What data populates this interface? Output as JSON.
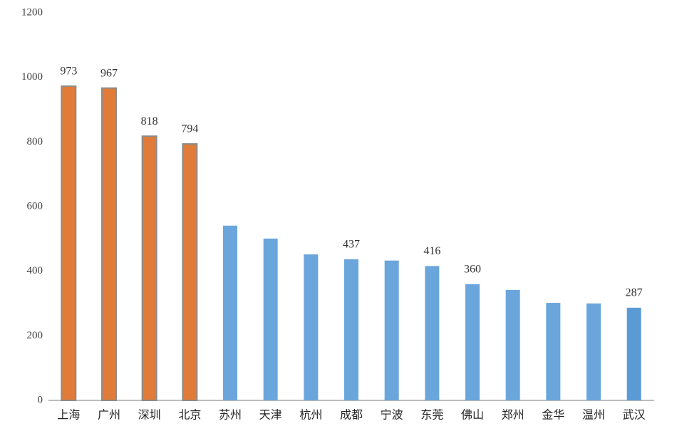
{
  "chart_data": {
    "type": "bar",
    "categories": [
      "上海",
      "广州",
      "深圳",
      "北京",
      "苏州",
      "天津",
      "杭州",
      "成都",
      "宁波",
      "东莞",
      "佛山",
      "郑州",
      "金华",
      "温州",
      "武汉"
    ],
    "values": [
      973,
      967,
      818,
      794,
      541,
      501,
      452,
      437,
      433,
      416,
      360,
      342,
      302,
      300,
      287
    ],
    "value_labels": [
      "973",
      "967",
      "818",
      "794",
      null,
      null,
      null,
      "437",
      null,
      "416",
      "360",
      null,
      null,
      null,
      "287"
    ],
    "colors": [
      "#e07b39",
      "#e07b39",
      "#e07b39",
      "#e07b39",
      "#6aa6dc",
      "#6aa6dc",
      "#6aa6dc",
      "#6aa6dc",
      "#6aa6dc",
      "#6aa6dc",
      "#6aa6dc",
      "#6aa6dc",
      "#6aa6dc",
      "#6aa6dc",
      "#5b9bd5"
    ],
    "ylim": [
      0,
      1200
    ],
    "yticks": [
      0,
      200,
      400,
      600,
      800,
      1000,
      1200
    ],
    "grid": false
  }
}
